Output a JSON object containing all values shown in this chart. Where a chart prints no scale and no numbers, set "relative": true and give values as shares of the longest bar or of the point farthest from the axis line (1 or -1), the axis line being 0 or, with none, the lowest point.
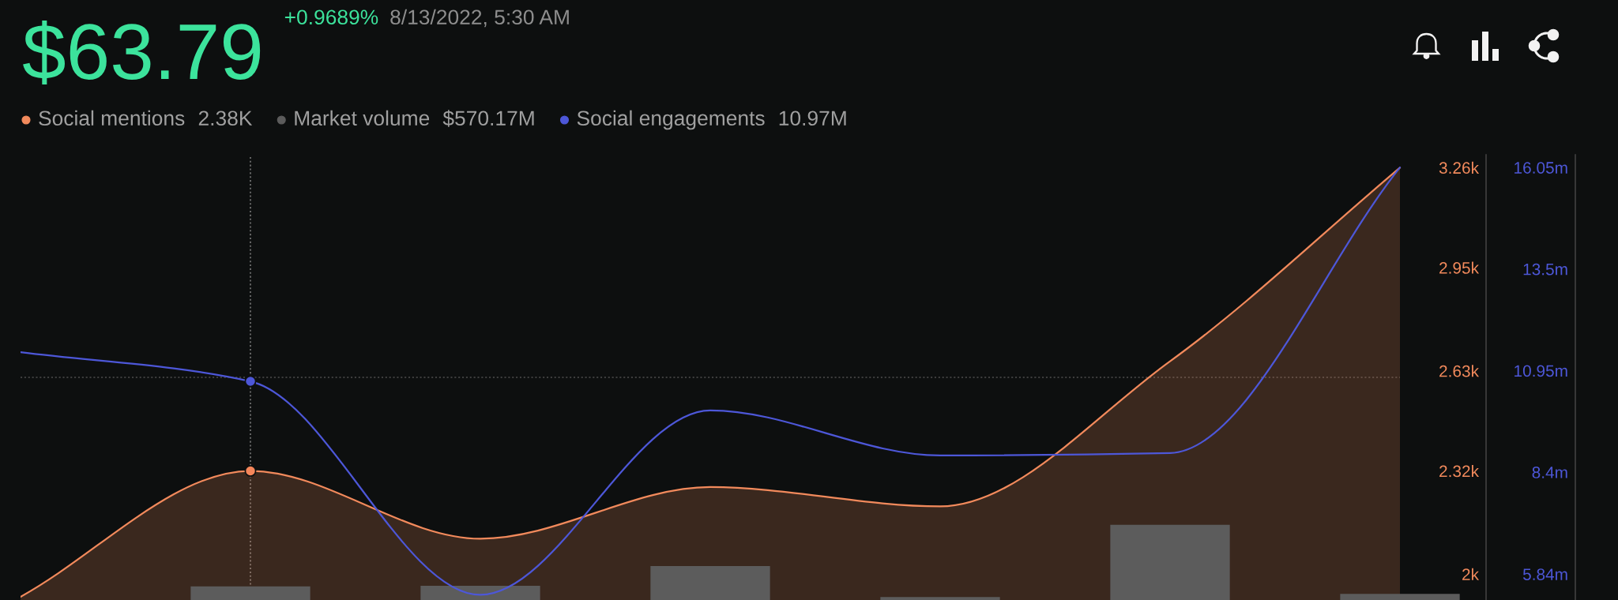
{
  "chart_data": [
    {
      "type": "area",
      "title": "$63.79",
      "subtitle": "+0.9689%",
      "annotations": [
        "8/13/2022, 5:30 AM",
        "2.38K",
        "10.97M"
      ],
      "categories": [
        null,
        null,
        null,
        null,
        null,
        null,
        null
      ],
      "series": [
        {
          "name": "Social mentions",
          "color": "#f28a5c",
          "values": [
            1930,
            2320,
            2110,
            2270,
            2210,
            2660,
            3260
          ]
        },
        {
          "name": "Social engagements",
          "type": "line",
          "axis": "y2",
          "color": "#4d57d8",
          "values": [
            11410000,
            10680000,
            5320000,
            9950000,
            8820000,
            8880000,
            16050000
          ]
        },
        {
          "type": "scatter",
          "color": "#f5865a",
          "values": [
            null,
            2320,
            null,
            null,
            null,
            null,
            null
          ]
        },
        {
          "type": "scatter",
          "axis": "y2",
          "color": "#4d57d8",
          "values": [
            null,
            10680000,
            null,
            null,
            null,
            null,
            null
          ]
        }
      ],
      "ylim": [
        1920,
        3300
      ],
      "yticks": [
        {
          "value": 2000,
          "label": "2k"
        },
        {
          "value": 2320,
          "label": "2.32k"
        },
        {
          "value": 2630,
          "label": "2.63k"
        },
        {
          "value": 2950,
          "label": "2.95k"
        },
        {
          "value": 3260,
          "label": "3.26k"
        }
      ],
      "y2lim": [
        5190000,
        16370000
      ],
      "y2ticks": [
        {
          "value": 5840000,
          "label": "5.84m"
        },
        {
          "value": 8400000,
          "label": "8.4m"
        },
        {
          "value": 10950000,
          "label": "10.95m"
        },
        {
          "value": 13500000,
          "label": "13.5m"
        },
        {
          "value": 16050000,
          "label": "16.05m"
        }
      ],
      "ref_lines": [
        {
          "axis": "y",
          "value": 2610,
          "color": "#4e4e4e",
          "line_style": "dotted"
        }
      ],
      "legend": "top left"
    },
    {
      "type": "bar",
      "relative": true,
      "annotations": [
        "$570.17M"
      ],
      "categories": [
        null,
        null,
        null,
        null,
        null,
        null,
        null
      ],
      "series": [
        {
          "name": "Market volume",
          "color": "#5c5c5c",
          "values": [
            null,
            0.18,
            0.19,
            0.45,
            0.04,
            1,
            0.08
          ]
        }
      ],
      "legend": "top left"
    }
  ]
}
